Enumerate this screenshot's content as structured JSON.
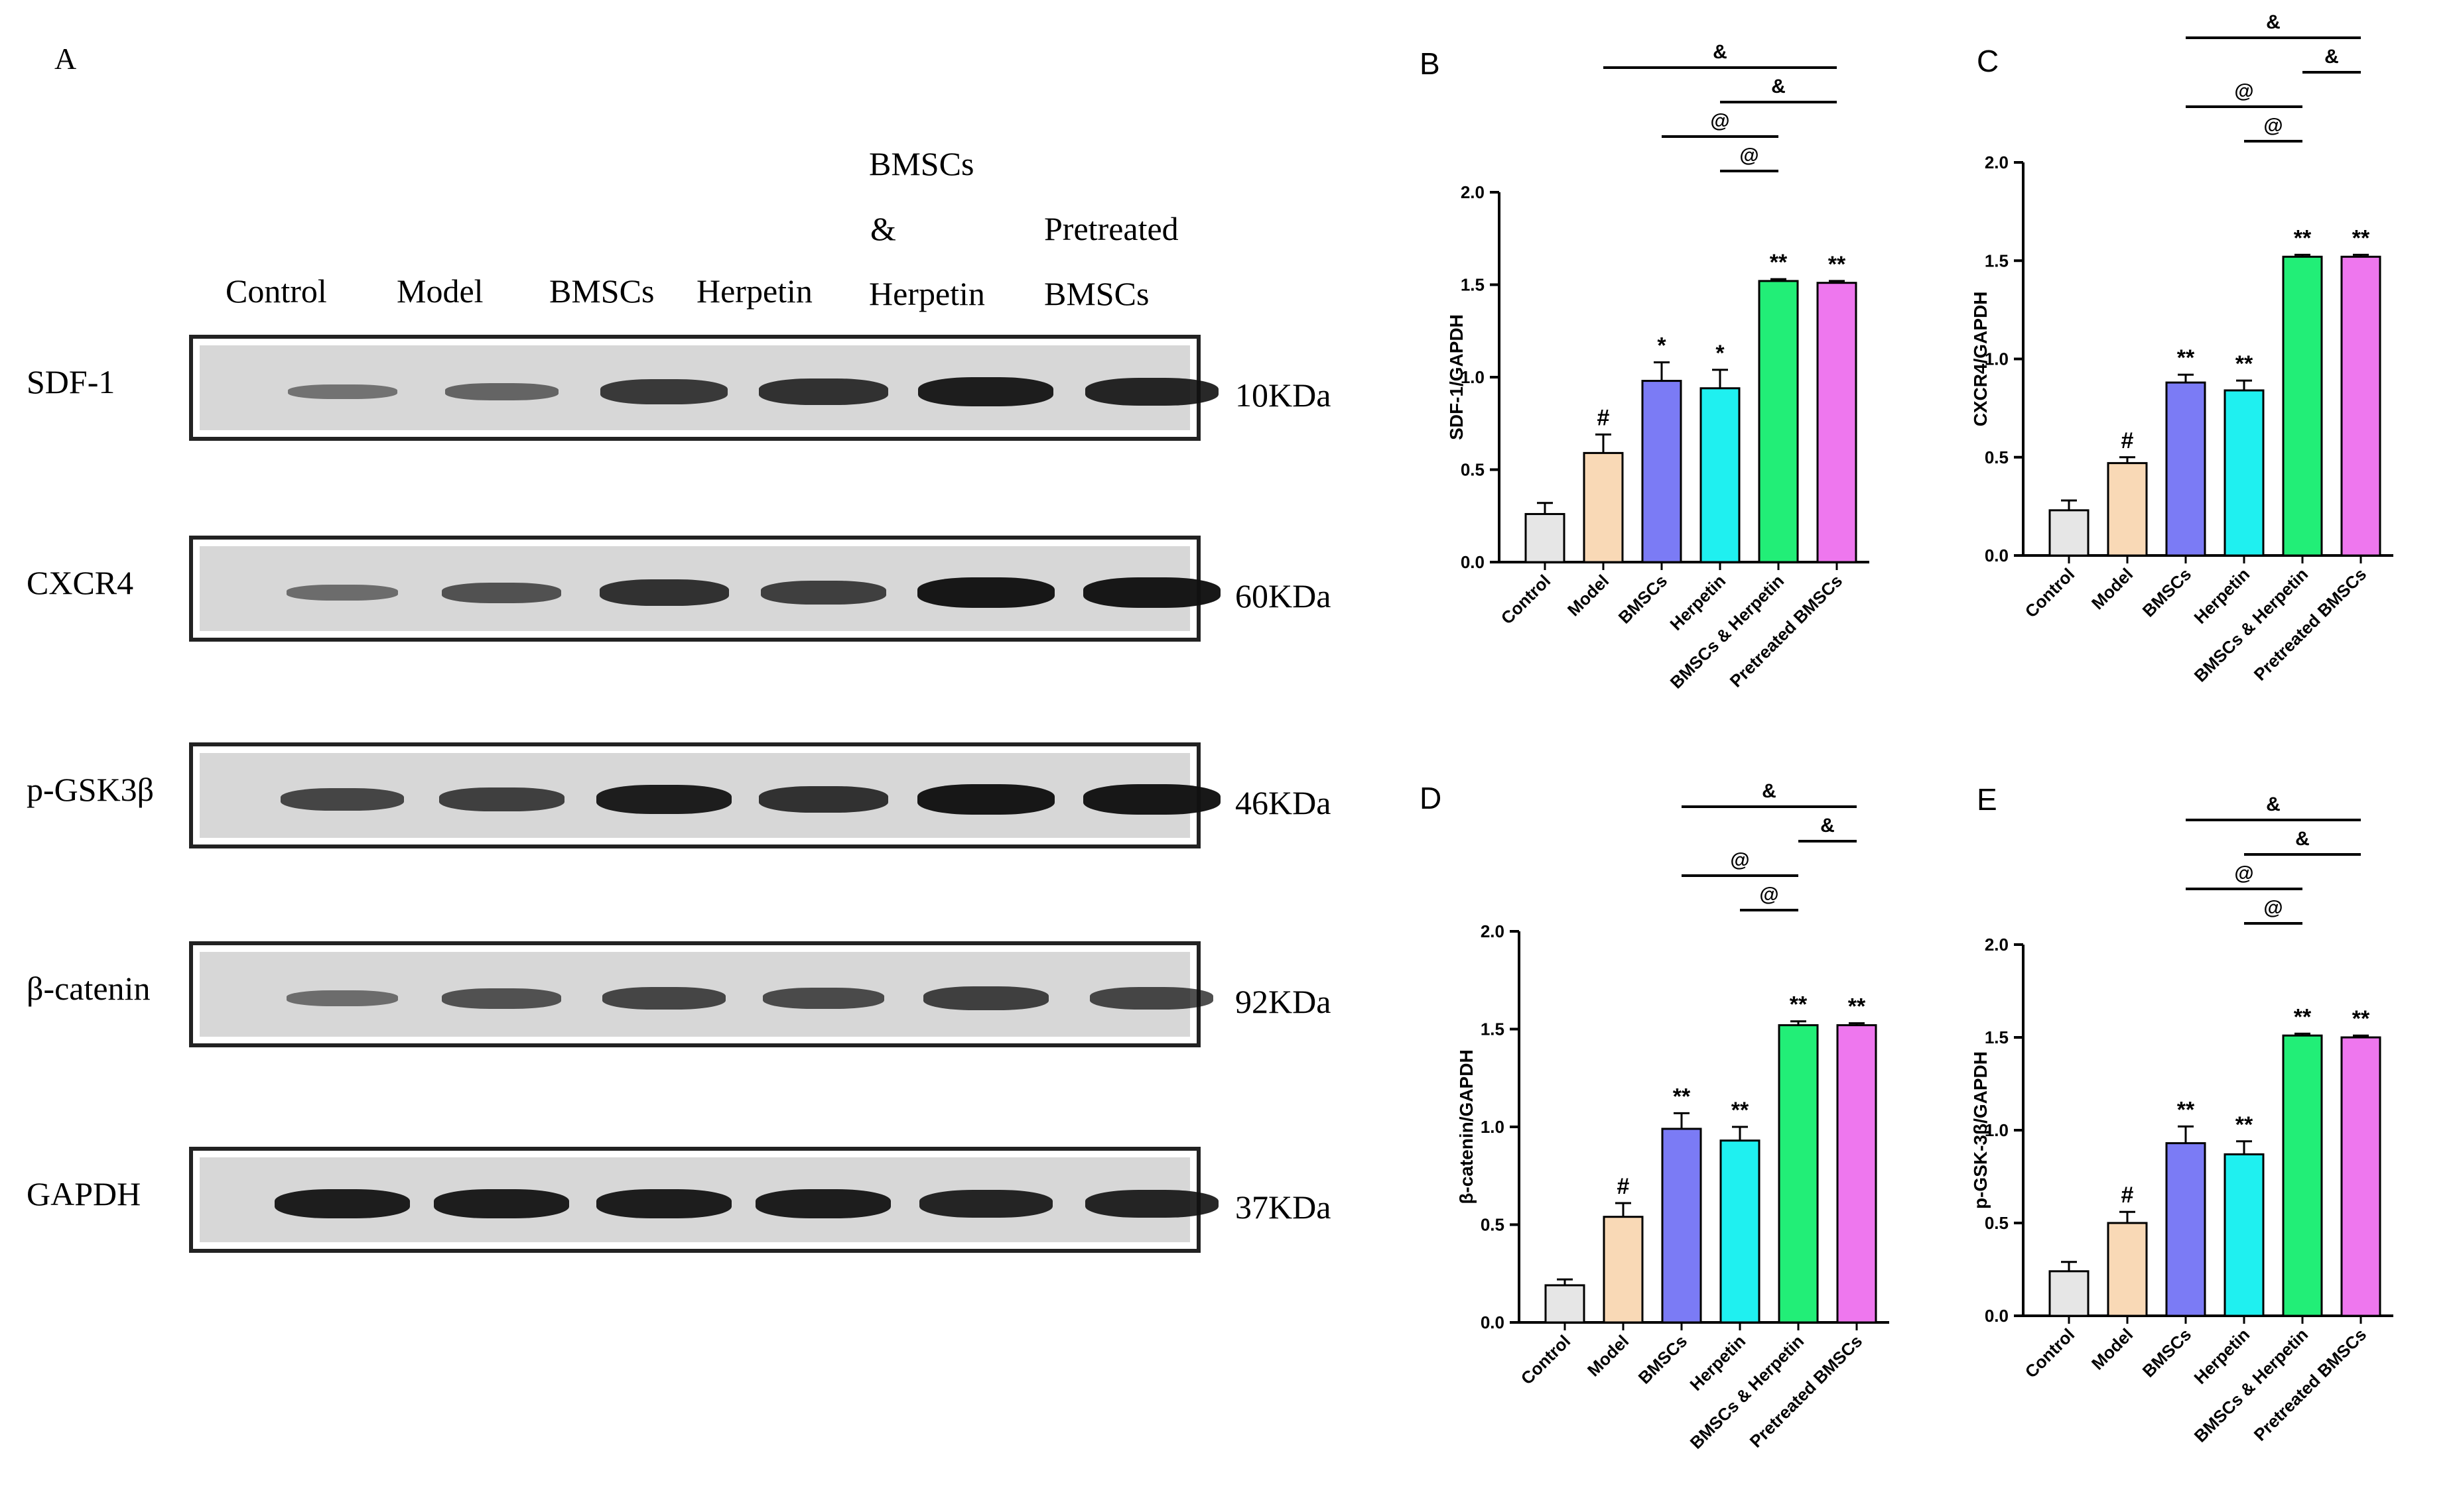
{
  "panel_a": {
    "letter": "A",
    "lanes": [
      "Control",
      "Model",
      "BMSCs",
      "Herpetin",
      "BMSCs",
      "&",
      "Herpetin",
      "Pretreated",
      "BMSCs"
    ],
    "blots": [
      {
        "protein": "SDF-1",
        "kda": "10KDa",
        "intensity": [
          0.25,
          0.35,
          0.7,
          0.75,
          0.9,
          0.85
        ]
      },
      {
        "protein": "CXCR4",
        "kda": "60KDa",
        "intensity": [
          0.3,
          0.5,
          0.75,
          0.65,
          0.95,
          0.95
        ]
      },
      {
        "protein": "p-GSK3β",
        "kda": "46KDa",
        "intensity": [
          0.6,
          0.65,
          0.9,
          0.75,
          0.95,
          0.95
        ]
      },
      {
        "protein": "β-catenin",
        "kda": "92KDa",
        "intensity": [
          0.3,
          0.5,
          0.6,
          0.55,
          0.65,
          0.6
        ]
      },
      {
        "protein": "GAPDH",
        "kda": "37KDa",
        "intensity": [
          0.9,
          0.9,
          0.9,
          0.9,
          0.85,
          0.85
        ]
      }
    ]
  },
  "chart_data": [
    {
      "panel": "B",
      "type": "bar",
      "ylabel": "SDF-1/GAPDH",
      "ylim": [
        0,
        2.0
      ],
      "yticks": [
        "0.0",
        "0.5",
        "1.0",
        "1.5",
        "2.0"
      ],
      "categories": [
        "Control",
        "Model",
        "BMSCs",
        "Herpetin",
        "BMSCs & Herpetin",
        "Pretreated BMSCs"
      ],
      "values": [
        0.26,
        0.59,
        0.98,
        0.94,
        1.52,
        1.51
      ],
      "errors": [
        0.06,
        0.1,
        0.1,
        0.1,
        0.01,
        0.01
      ],
      "labels": [
        "",
        "#",
        "*",
        "*",
        "**",
        "**"
      ],
      "colors": [
        "#e6e6e6",
        "#f9d9b6",
        "#7b7bf5",
        "#1ff0f0",
        "#22ee77",
        "#ee77ee"
      ],
      "brackets": [
        {
          "label": "&",
          "from": 1,
          "to": 5,
          "level": 4
        },
        {
          "label": "&",
          "from": 3,
          "to": 5,
          "level": 3
        },
        {
          "label": "@",
          "from": 2,
          "to": 4,
          "level": 2
        },
        {
          "label": "@",
          "from": 3,
          "to": 4,
          "level": 1
        }
      ]
    },
    {
      "panel": "C",
      "type": "bar",
      "ylabel": "CXCR4/GAPDH",
      "ylim": [
        0,
        2.0
      ],
      "yticks": [
        "0.0",
        "0.5",
        "1.0",
        "1.5",
        "2.0"
      ],
      "categories": [
        "Control",
        "Model",
        "BMSCs",
        "Herpetin",
        "BMSCs & Herpetin",
        "Pretreated BMSCs"
      ],
      "values": [
        0.23,
        0.47,
        0.88,
        0.84,
        1.52,
        1.52
      ],
      "errors": [
        0.05,
        0.03,
        0.04,
        0.05,
        0.01,
        0.01
      ],
      "labels": [
        "",
        "#",
        "**",
        "**",
        "**",
        "**"
      ],
      "colors": [
        "#e6e6e6",
        "#f9d9b6",
        "#7b7bf5",
        "#1ff0f0",
        "#22ee77",
        "#ee77ee"
      ],
      "brackets": [
        {
          "label": "&",
          "from": 2,
          "to": 5,
          "level": 4
        },
        {
          "label": "&",
          "from": 4,
          "to": 5,
          "level": 3
        },
        {
          "label": "@",
          "from": 2,
          "to": 4,
          "level": 2
        },
        {
          "label": "@",
          "from": 3,
          "to": 4,
          "level": 1
        }
      ]
    },
    {
      "panel": "D",
      "type": "bar",
      "ylabel": "β-catenin/GAPDH",
      "ylim": [
        0,
        2.0
      ],
      "yticks": [
        "0.0",
        "0.5",
        "1.0",
        "1.5",
        "2.0"
      ],
      "categories": [
        "Control",
        "Model",
        "BMSCs",
        "Herpetin",
        "BMSCs & Herpetin",
        "Pretreated BMSCs"
      ],
      "values": [
        0.19,
        0.54,
        0.99,
        0.93,
        1.52,
        1.52
      ],
      "errors": [
        0.03,
        0.07,
        0.08,
        0.07,
        0.02,
        0.01
      ],
      "labels": [
        "",
        "#",
        "**",
        "**",
        "**",
        "**"
      ],
      "colors": [
        "#e6e6e6",
        "#f9d9b6",
        "#7b7bf5",
        "#1ff0f0",
        "#22ee77",
        "#ee77ee"
      ],
      "brackets": [
        {
          "label": "&",
          "from": 2,
          "to": 5,
          "level": 4
        },
        {
          "label": "&",
          "from": 4,
          "to": 5,
          "level": 3
        },
        {
          "label": "@",
          "from": 2,
          "to": 4,
          "level": 2
        },
        {
          "label": "@",
          "from": 3,
          "to": 4,
          "level": 1
        }
      ]
    },
    {
      "panel": "E",
      "type": "bar",
      "ylabel": "p-GSK-3β/GAPDH",
      "ylim": [
        0,
        2.0
      ],
      "yticks": [
        "0.0",
        "0.5",
        "1.0",
        "1.5",
        "2.0"
      ],
      "categories": [
        "Control",
        "Model",
        "BMSCs",
        "Herpetin",
        "BMSCs & Herpetin",
        "Pretreated BMSCs"
      ],
      "values": [
        0.24,
        0.5,
        0.93,
        0.87,
        1.51,
        1.5
      ],
      "errors": [
        0.05,
        0.06,
        0.09,
        0.07,
        0.01,
        0.01
      ],
      "labels": [
        "",
        "#",
        "**",
        "**",
        "**",
        "**"
      ],
      "colors": [
        "#e6e6e6",
        "#f9d9b6",
        "#7b7bf5",
        "#1ff0f0",
        "#22ee77",
        "#ee77ee"
      ],
      "brackets": [
        {
          "label": "&",
          "from": 2,
          "to": 5,
          "level": 4
        },
        {
          "label": "&",
          "from": 3,
          "to": 5,
          "level": 3
        },
        {
          "label": "@",
          "from": 2,
          "to": 4,
          "level": 2
        },
        {
          "label": "@",
          "from": 3,
          "to": 4,
          "level": 1
        }
      ]
    }
  ]
}
